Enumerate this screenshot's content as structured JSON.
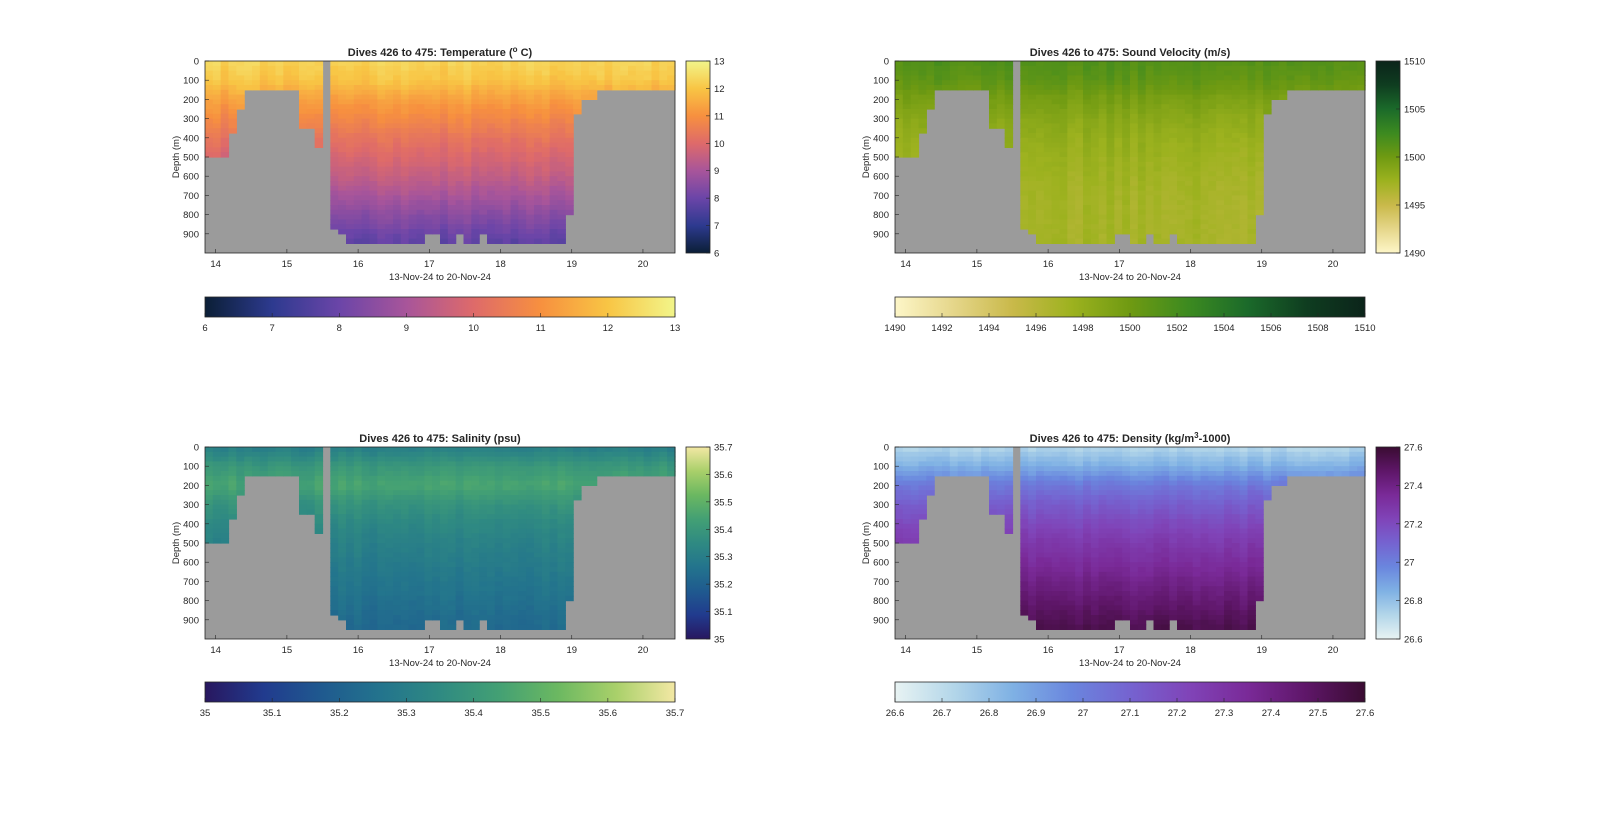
{
  "figure": {
    "panels": [
      {
        "id": "temperature",
        "title_main": "Dives 426 to 475: Temperature (",
        "title_sup": "o",
        "title_tail": " C)",
        "ylabel": "Depth (m)",
        "xlabel": "13-Nov-24 to 20-Nov-24",
        "colormap": [
          "#0b1f36",
          "#2d3a8f",
          "#6b45a8",
          "#a8559a",
          "#de6a6a",
          "#f7903f",
          "#f8c544",
          "#f2f58a"
        ],
        "clim": [
          6,
          13
        ],
        "cbar_ticks_right": [
          "6",
          "7",
          "8",
          "9",
          "10",
          "11",
          "12",
          "13"
        ],
        "cbar_ticks_bottom": [
          "6",
          "7",
          "8",
          "9",
          "10",
          "11",
          "12",
          "13"
        ],
        "surface_value": 12.3,
        "deep_value": 7.8,
        "mid_value": 10.0
      },
      {
        "id": "sound-velocity",
        "title_main": "Dives 426 to 475: Sound Velocity (m/s)",
        "title_sup": "",
        "title_tail": "",
        "ylabel": "Depth (m)",
        "xlabel": "13-Nov-24 to 20-Nov-24",
        "colormap": [
          "#fdf6c8",
          "#e5d68a",
          "#c9b94a",
          "#9db21f",
          "#6f9a12",
          "#3c8a20",
          "#1b6a2a",
          "#0f3d20",
          "#0b241a"
        ],
        "clim": [
          1490,
          1510
        ],
        "cbar_ticks_right": [
          "1490",
          "1495",
          "1500",
          "1505",
          "1510"
        ],
        "cbar_ticks_bottom": [
          "1490",
          "1492",
          "1494",
          "1496",
          "1498",
          "1500",
          "1502",
          "1504",
          "1506",
          "1508",
          "1510"
        ],
        "surface_value": 1501.5,
        "deep_value": 1497.0,
        "mid_value": 1498.5
      },
      {
        "id": "salinity",
        "title_main": "Dives 426 to 475: Salinity (psu)",
        "title_sup": "",
        "title_tail": "",
        "ylabel": "Depth (m)",
        "xlabel": "13-Nov-24 to 20-Nov-24",
        "colormap": [
          "#28175f",
          "#213b8e",
          "#1f5a8f",
          "#23748d",
          "#2f8a82",
          "#43a074",
          "#6bb861",
          "#a9d06a",
          "#f3e8a4"
        ],
        "clim": [
          35.0,
          35.7
        ],
        "cbar_ticks_right": [
          "35",
          "35.1",
          "35.2",
          "35.3",
          "35.4",
          "35.5",
          "35.6",
          "35.7"
        ],
        "cbar_ticks_bottom": [
          "35",
          "35.1",
          "35.2",
          "35.3",
          "35.4",
          "35.5",
          "35.6",
          "35.7"
        ],
        "surface_value": 35.3,
        "deep_value": 35.23,
        "mid_value": 35.36
      },
      {
        "id": "density",
        "title_main": "Dives 426 to 475: Density (kg/m",
        "title_sup": "3",
        "title_tail": "-1000)",
        "ylabel": "Depth (m)",
        "xlabel": "13-Nov-24 to 20-Nov-24",
        "colormap": [
          "#e8f3f3",
          "#b3d6e9",
          "#7fb1e4",
          "#6a86de",
          "#7563d0",
          "#8044b8",
          "#7a2a98",
          "#5e1668",
          "#3a0c32"
        ],
        "clim": [
          26.6,
          27.6
        ],
        "cbar_ticks_right": [
          "26.6",
          "26.8",
          "27",
          "27.2",
          "27.4",
          "27.6"
        ],
        "cbar_ticks_bottom": [
          "26.6",
          "26.7",
          "26.8",
          "26.9",
          "27",
          "27.1",
          "27.2",
          "27.3",
          "27.4",
          "27.5",
          "27.6"
        ],
        "surface_value": 26.72,
        "deep_value": 27.55,
        "mid_value": 27.2
      }
    ]
  },
  "chart_data": [
    {
      "type": "heatmap",
      "title": "Dives 426 to 475: Temperature (° C)",
      "xlabel": "13-Nov-24 to 20-Nov-24",
      "ylabel": "Depth (m)",
      "x_ticks": [
        "14",
        "15",
        "16",
        "17",
        "18",
        "19",
        "20"
      ],
      "y_ticks": [
        "0",
        "100",
        "200",
        "300",
        "400",
        "500",
        "600",
        "700",
        "800",
        "900"
      ],
      "xlim": [
        13.85,
        20.45
      ],
      "ylim": [
        0,
        1000
      ],
      "clim": [
        6,
        13
      ],
      "depths_m": [
        0,
        100,
        200,
        300,
        400,
        500,
        600,
        700,
        800,
        900,
        990
      ],
      "values": [
        12.3,
        12.0,
        11.3,
        10.8,
        10.3,
        9.9,
        9.5,
        9.0,
        8.5,
        8.0,
        7.6
      ],
      "grid": false,
      "colorbar": "right and bottom"
    },
    {
      "type": "heatmap",
      "title": "Dives 426 to 475: Sound Velocity (m/s)",
      "xlabel": "13-Nov-24 to 20-Nov-24",
      "ylabel": "Depth (m)",
      "x_ticks": [
        "14",
        "15",
        "16",
        "17",
        "18",
        "19",
        "20"
      ],
      "y_ticks": [
        "0",
        "100",
        "200",
        "300",
        "400",
        "500",
        "600",
        "700",
        "800",
        "900"
      ],
      "xlim": [
        13.85,
        20.45
      ],
      "ylim": [
        0,
        1000
      ],
      "clim": [
        1490,
        1510
      ],
      "depths_m": [
        0,
        100,
        200,
        300,
        400,
        500,
        600,
        700,
        800,
        900,
        990
      ],
      "values": [
        1501.5,
        1500.8,
        1499.5,
        1498.6,
        1498.0,
        1497.6,
        1497.3,
        1497.1,
        1497.0,
        1497.0,
        1497.1
      ],
      "grid": false,
      "colorbar": "right and bottom"
    },
    {
      "type": "heatmap",
      "title": "Dives 426 to 475: Salinity (psu)",
      "xlabel": "13-Nov-24 to 20-Nov-24",
      "ylabel": "Depth (m)",
      "x_ticks": [
        "14",
        "15",
        "16",
        "17",
        "18",
        "19",
        "20"
      ],
      "y_ticks": [
        "0",
        "100",
        "200",
        "300",
        "400",
        "500",
        "600",
        "700",
        "800",
        "900"
      ],
      "xlim": [
        13.85,
        20.45
      ],
      "ylim": [
        0,
        1000
      ],
      "clim": [
        35.0,
        35.7
      ],
      "depths_m": [
        0,
        100,
        200,
        300,
        400,
        500,
        600,
        700,
        800,
        900,
        990
      ],
      "values": [
        35.3,
        35.4,
        35.45,
        35.38,
        35.34,
        35.31,
        35.29,
        35.27,
        35.25,
        35.23,
        35.22
      ],
      "grid": false,
      "colorbar": "right and bottom"
    },
    {
      "type": "heatmap",
      "title": "Dives 426 to 475: Density (kg/m³-1000)",
      "xlabel": "13-Nov-24 to 20-Nov-24",
      "ylabel": "Depth (m)",
      "x_ticks": [
        "14",
        "15",
        "16",
        "17",
        "18",
        "19",
        "20"
      ],
      "y_ticks": [
        "0",
        "100",
        "200",
        "300",
        "400",
        "500",
        "600",
        "700",
        "800",
        "900"
      ],
      "xlim": [
        13.85,
        20.45
      ],
      "ylim": [
        0,
        1000
      ],
      "clim": [
        26.6,
        27.6
      ],
      "depths_m": [
        0,
        100,
        200,
        300,
        400,
        500,
        600,
        700,
        800,
        900,
        990
      ],
      "values": [
        26.72,
        26.85,
        27.02,
        27.12,
        27.2,
        27.27,
        27.33,
        27.39,
        27.45,
        27.51,
        27.56
      ],
      "grid": false,
      "colorbar": "right and bottom"
    }
  ]
}
